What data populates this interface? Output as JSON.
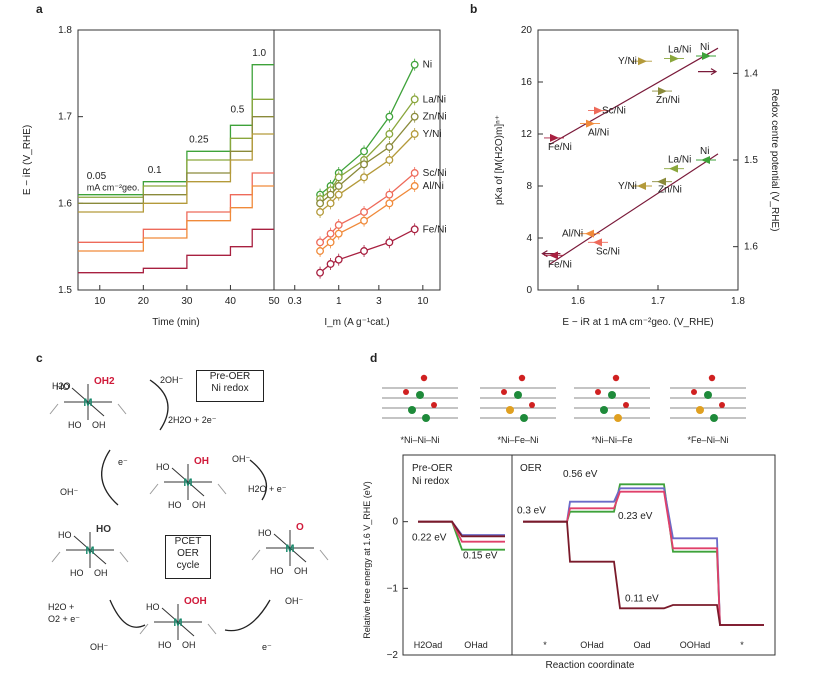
{
  "panel_labels": {
    "a": "a",
    "b": "b",
    "c": "c",
    "d": "d"
  },
  "colors": {
    "ni": "#3ea23a",
    "la": "#8aa63c",
    "zn": "#8a8a3a",
    "y": "#b49a3a",
    "sc": "#ee6a5a",
    "al": "#f08a3a",
    "fe": "#a82040",
    "pre_line": "#e0406a",
    "ni_fe_ni": "#6a6ac8",
    "fe_ni_ni": "#7a1a2a",
    "axis": "#333333"
  },
  "chart_data": [
    {
      "panel": "a-left",
      "type": "line",
      "title": "",
      "ylabel": "E − iR (V_RHE)",
      "xlabel": "Time (min)",
      "ylim": [
        1.5,
        1.8
      ],
      "xlim": [
        5,
        50
      ],
      "yticks": [
        "1.5",
        "1.6",
        "1.7",
        "1.8"
      ],
      "xticks": [
        "10",
        "20",
        "30",
        "40",
        "50"
      ],
      "step_labels": [
        "0.05",
        "mA cm⁻²geo.",
        "0.1",
        "0.25",
        "0.5",
        "1.0"
      ],
      "step_times": [
        5,
        20,
        30,
        40,
        45,
        50
      ],
      "series": [
        {
          "name": "Ni",
          "values": [
            1.61,
            1.625,
            1.66,
            1.69,
            1.76
          ]
        },
        {
          "name": "La/Ni",
          "values": [
            1.607,
            1.62,
            1.65,
            1.675,
            1.72
          ]
        },
        {
          "name": "Zn/Ni",
          "values": [
            1.6,
            1.61,
            1.635,
            1.66,
            1.7
          ]
        },
        {
          "name": "Y/Ni",
          "values": [
            1.59,
            1.6,
            1.625,
            1.65,
            1.68
          ]
        },
        {
          "name": "Sc/Ni",
          "values": [
            1.555,
            1.57,
            1.59,
            1.61,
            1.635
          ]
        },
        {
          "name": "Al/Ni",
          "values": [
            1.545,
            1.56,
            1.58,
            1.595,
            1.62
          ]
        },
        {
          "name": "Fe/Ni",
          "values": [
            1.52,
            1.525,
            1.54,
            1.55,
            1.57
          ]
        }
      ]
    },
    {
      "panel": "a-right",
      "type": "line",
      "xlabel": "I_m (A g⁻¹cat.)",
      "xticks": [
        "0.3",
        "1",
        "3",
        "10"
      ],
      "xticks_values": [
        0.3,
        1,
        3,
        10
      ],
      "x": [
        0.6,
        0.8,
        1.0,
        2.0,
        4.0,
        8.0
      ],
      "series": [
        {
          "name": "Ni",
          "label": "Ni",
          "values": [
            1.61,
            1.62,
            1.635,
            1.66,
            1.7,
            1.76
          ]
        },
        {
          "name": "La/Ni",
          "label": "La/Ni",
          "values": [
            1.605,
            1.615,
            1.63,
            1.65,
            1.68,
            1.72
          ]
        },
        {
          "name": "Zn/Ni",
          "label": "Zn/Ni",
          "values": [
            1.6,
            1.61,
            1.62,
            1.645,
            1.665,
            1.7
          ]
        },
        {
          "name": "Y/Ni",
          "label": "Y/Ni",
          "values": [
            1.59,
            1.6,
            1.61,
            1.63,
            1.65,
            1.68
          ]
        },
        {
          "name": "Sc/Ni",
          "label": "Sc/Ni",
          "values": [
            1.555,
            1.565,
            1.575,
            1.59,
            1.61,
            1.635
          ]
        },
        {
          "name": "Al/Ni",
          "label": "Al/Ni",
          "values": [
            1.545,
            1.555,
            1.565,
            1.58,
            1.6,
            1.62
          ]
        },
        {
          "name": "Fe/Ni",
          "label": "Fe/Ni",
          "values": [
            1.52,
            1.53,
            1.535,
            1.545,
            1.555,
            1.57
          ]
        }
      ]
    },
    {
      "panel": "b",
      "type": "scatter",
      "xlabel": "E − iR at 1 mA cm⁻²geo. (V_RHE)",
      "ylabel_left": "pKa of [M(H2O)m]ⁿ⁺",
      "ylabel_right": "Redox centre potential (V_RHE)",
      "xlim": [
        1.55,
        1.8
      ],
      "ylim_left": [
        0,
        20
      ],
      "ylim_right": [
        1.35,
        1.65
      ],
      "xticks": [
        "1.6",
        "1.7",
        "1.8"
      ],
      "yticks_left": [
        "0",
        "4",
        "8",
        "12",
        "16",
        "20"
      ],
      "yticks_right": [
        "1.4",
        "1.5",
        "1.6"
      ],
      "pka_points": [
        {
          "label": "Fe/Ni",
          "x": 1.57,
          "y": 11.7
        },
        {
          "label": "Al/Ni",
          "x": 1.615,
          "y": 12.8
        },
        {
          "label": "Sc/Ni",
          "x": 1.625,
          "y": 13.8
        },
        {
          "label": "Y/Ni",
          "x": 1.68,
          "y": 17.6
        },
        {
          "label": "Zn/Ni",
          "x": 1.705,
          "y": 15.3
        },
        {
          "label": "La/Ni",
          "x": 1.72,
          "y": 17.8
        },
        {
          "label": "Ni",
          "x": 1.76,
          "y": 18.0
        }
      ],
      "redox_points": [
        {
          "label": "Fe/Ni",
          "x": 1.57,
          "y": 1.61
        },
        {
          "label": "Al/Ni",
          "x": 1.615,
          "y": 1.585
        },
        {
          "label": "Sc/Ni",
          "x": 1.625,
          "y": 1.595
        },
        {
          "label": "Y/Ni",
          "x": 1.68,
          "y": 1.53
        },
        {
          "label": "Zn/Ni",
          "x": 1.705,
          "y": 1.525
        },
        {
          "label": "La/Ni",
          "x": 1.72,
          "y": 1.51
        },
        {
          "label": "Ni",
          "x": 1.76,
          "y": 1.5
        }
      ]
    },
    {
      "panel": "d",
      "type": "line",
      "ylabel": "Relative free energy at 1.6 V_RHE (eV)",
      "xlabel": "Reaction coordinate",
      "ylim": [
        -2,
        1
      ],
      "yticks": [
        "−2",
        "−1",
        "0"
      ],
      "sections": [
        "Pre-OER\nNi redox",
        "OER"
      ],
      "pre_xticks": [
        "H2Oad",
        "OHad"
      ],
      "oer_xticks": [
        "*",
        "OHad",
        "Oad",
        "OOHad",
        "*"
      ],
      "annotations": [
        "0.22 eV",
        "0.15 eV",
        "0.56 eV",
        "0.3 eV",
        "0.23 eV",
        "0.11 eV"
      ],
      "series": [
        {
          "name": "*Ni–Ni–Ni",
          "pre": [
            0,
            -0.42
          ],
          "oer": [
            0,
            0.15,
            0.56,
            -0.45,
            -1.55
          ]
        },
        {
          "name": "*Ni–Fe–Ni",
          "pre": [
            0,
            -0.2
          ],
          "oer": [
            0,
            0.3,
            0.5,
            -0.25,
            -1.55
          ]
        },
        {
          "name": "*Ni–Ni–Fe",
          "pre": [
            0,
            -0.3
          ],
          "oer": [
            0,
            0.2,
            0.45,
            -0.4,
            -1.55
          ]
        },
        {
          "name": "*Fe–Ni–Ni",
          "pre": [
            0,
            -0.22
          ],
          "oer": [
            0,
            -0.6,
            -1.3,
            -1.25,
            -1.55
          ]
        }
      ]
    }
  ],
  "panel_c": {
    "boxes": [
      "Pre-OER",
      "Ni redox",
      "PCET",
      "OER",
      "cycle"
    ],
    "arrows": [
      "2OH⁻",
      "2H2O + 2e⁻",
      "e⁻",
      "OH⁻",
      "OH⁻",
      "H2O + e⁻",
      "OH⁻",
      "e⁻",
      "H2O +",
      "O2 + e⁻",
      "OH⁻"
    ],
    "groups": [
      "H2O",
      "OH2",
      "OH",
      "O",
      "OOH",
      "HO",
      "OH"
    ]
  },
  "structure_labels": [
    "*Ni–Ni–Ni",
    "*Ni–Fe–Ni",
    "*Ni–Ni–Fe",
    "*Fe–Ni–Ni"
  ]
}
